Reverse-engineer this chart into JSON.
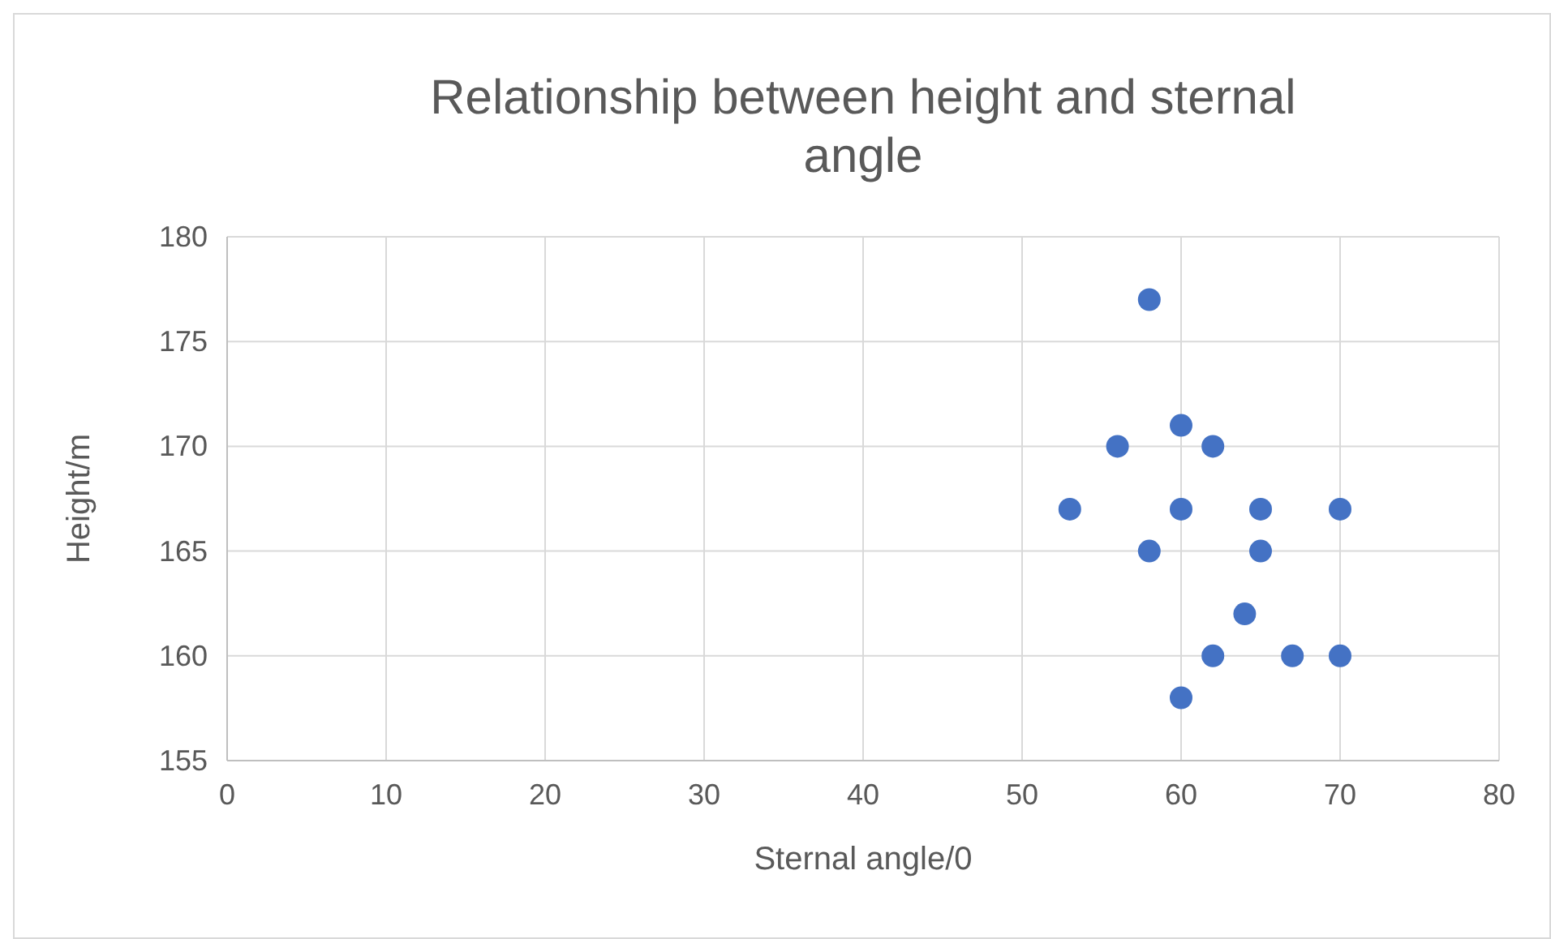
{
  "chart_data": {
    "type": "scatter",
    "title": "Relationship between height and sternal angle",
    "xlabel": "Sternal angle/0",
    "ylabel": "Height/m",
    "x": [
      58,
      56,
      60,
      62,
      53,
      60,
      65,
      70,
      58,
      65,
      64,
      62,
      67,
      70,
      60
    ],
    "values": [
      177,
      170,
      171,
      170,
      167,
      167,
      167,
      167,
      165,
      165,
      162,
      160,
      160,
      160,
      158
    ],
    "color": "#4472c4",
    "marker": "circle",
    "xlim": [
      0,
      80
    ],
    "xticks": [
      0,
      10,
      20,
      30,
      40,
      50,
      60,
      70,
      80
    ],
    "ylim": [
      155,
      180
    ],
    "yticks": [
      155,
      160,
      165,
      170,
      175,
      180
    ],
    "grid": true
  }
}
